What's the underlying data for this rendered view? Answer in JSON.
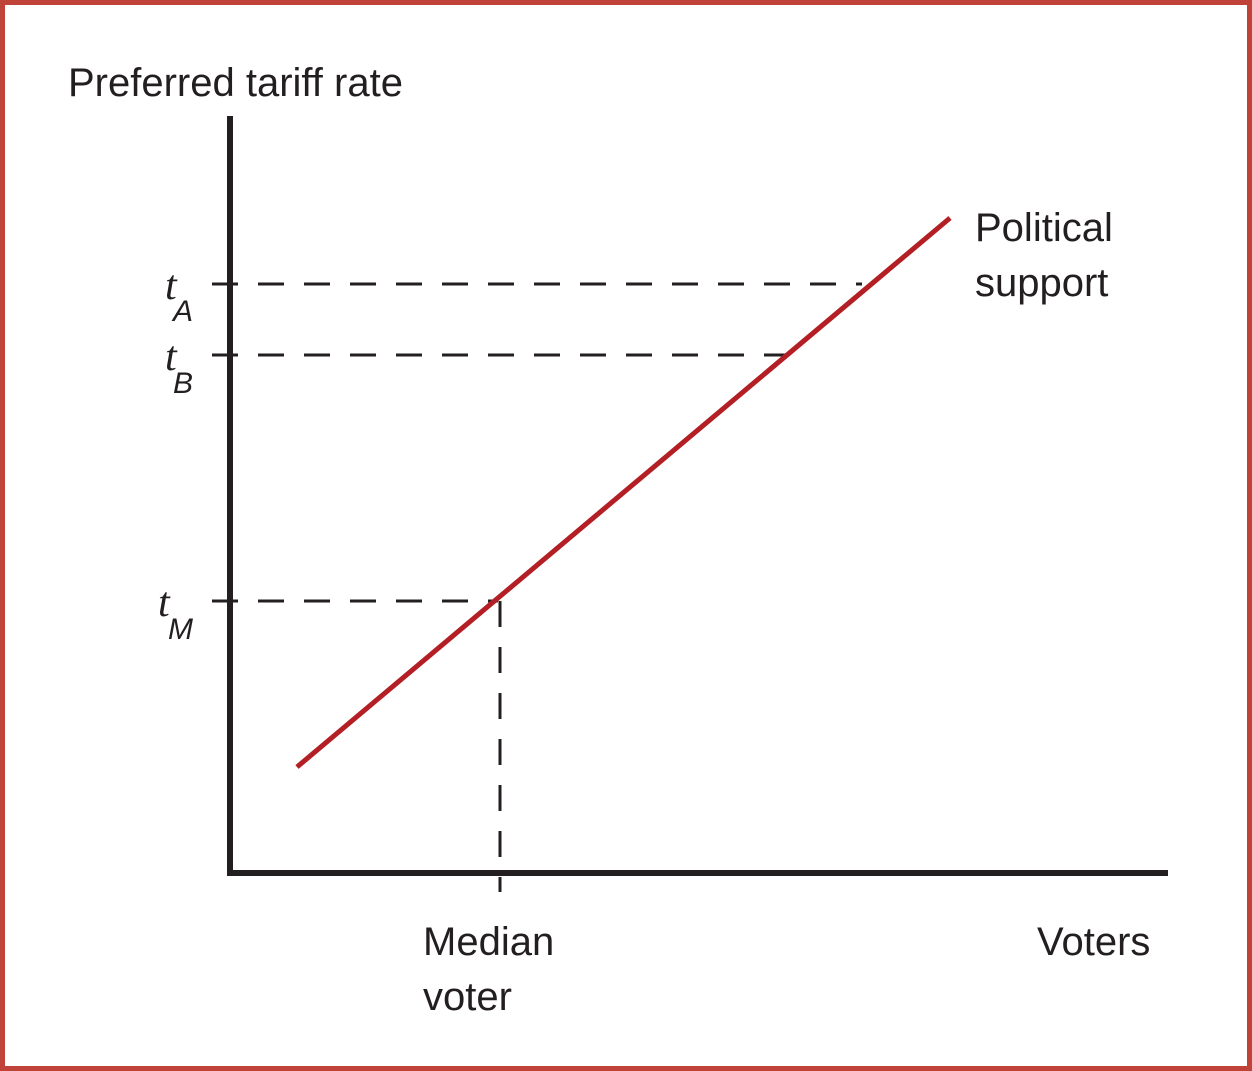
{
  "diagram": {
    "y_axis_label": "Preferred tariff rate",
    "x_axis_label": "Voters",
    "curve_label": [
      "Political",
      "support"
    ],
    "median_label": [
      "Median",
      "voter"
    ],
    "ticks": [
      {
        "main": "t",
        "sub": "A"
      },
      {
        "main": "t",
        "sub": "B"
      },
      {
        "main": "t",
        "sub": "M"
      }
    ],
    "colors": {
      "frame": "#c0433a",
      "curve": "#b31f24",
      "ink": "#231f20"
    }
  }
}
